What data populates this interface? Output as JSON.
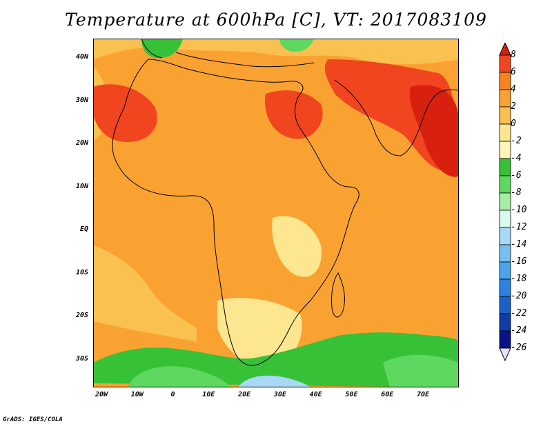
{
  "title": "Temperature at 600hPa [C], VT: 2017083109",
  "credit": "GrADS: IGES/COLA",
  "lat_ticks": [
    {
      "label": "40N",
      "value": 40
    },
    {
      "label": "30N",
      "value": 30
    },
    {
      "label": "20N",
      "value": 20
    },
    {
      "label": "10N",
      "value": 10
    },
    {
      "label": "EQ",
      "value": 0
    },
    {
      "label": "10S",
      "value": -10
    },
    {
      "label": "20S",
      "value": -20
    },
    {
      "label": "30S",
      "value": -30
    }
  ],
  "lon_ticks": [
    {
      "label": "20W",
      "value": -20
    },
    {
      "label": "10W",
      "value": -10
    },
    {
      "label": "0",
      "value": 0
    },
    {
      "label": "10E",
      "value": 10
    },
    {
      "label": "20E",
      "value": 20
    },
    {
      "label": "30E",
      "value": 30
    },
    {
      "label": "40E",
      "value": 40
    },
    {
      "label": "50E",
      "value": 50
    },
    {
      "label": "60E",
      "value": 60
    },
    {
      "label": "70E",
      "value": 70
    }
  ],
  "colorbar": {
    "levels": [
      "8",
      "6",
      "4",
      "2",
      "0",
      "-2",
      "-4",
      "-6",
      "-8",
      "-10",
      "-12",
      "-14",
      "-16",
      "-18",
      "-20",
      "-22",
      "-24",
      "-26"
    ],
    "colors": [
      "#d8200e",
      "#f0451f",
      "#f7821f",
      "#f9a232",
      "#fac150",
      "#fde690",
      "#fff3b8",
      "#37c137",
      "#5ed85e",
      "#a8eca8",
      "#d9f8f0",
      "#a8d8f4",
      "#78bff0",
      "#4aa3ec",
      "#2b82e0",
      "#1b5fc8",
      "#0e3da8",
      "#08128a",
      "#e6e0ff"
    ]
  }
}
